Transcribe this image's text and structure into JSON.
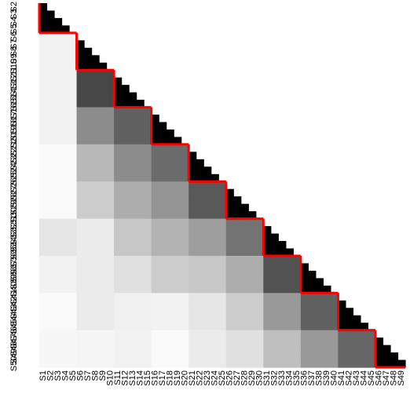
{
  "chart_data": {
    "type": "heatmap",
    "title": "",
    "xlabel": "",
    "ylabel": "",
    "x_labels": [
      "S1",
      "S2",
      "S3",
      "S4",
      "S5",
      "S6",
      "S7",
      "S8",
      "S9",
      "S10",
      "S11",
      "S12",
      "S13",
      "S14",
      "S15",
      "S16",
      "S17",
      "S18",
      "S19",
      "S20",
      "S21",
      "S22",
      "S23",
      "S24",
      "S25",
      "S26",
      "S27",
      "S28",
      "S29",
      "S30",
      "S31",
      "S32",
      "S33",
      "S34",
      "S35",
      "S36",
      "S37",
      "S38",
      "S39",
      "S40",
      "S41",
      "S42",
      "S43",
      "S44",
      "S45",
      "S46",
      "S47",
      "S48",
      "S49"
    ],
    "y_labels": [
      "S2",
      "S3",
      "S4",
      "S5",
      "S6",
      "S7",
      "S8",
      "S9",
      "S10",
      "S11",
      "S12",
      "S13",
      "S14",
      "S15",
      "S16",
      "S17",
      "S18",
      "S19",
      "S20",
      "S21",
      "S22",
      "S23",
      "S24",
      "S25",
      "S26",
      "S27",
      "S28",
      "S29",
      "S30",
      "S31",
      "S32",
      "S33",
      "S34",
      "S35",
      "S36",
      "S37",
      "S38",
      "S39",
      "S40",
      "S41",
      "S42",
      "S43",
      "S44",
      "S45",
      "S46",
      "S47",
      "S48",
      "S49",
      "S50"
    ],
    "lower_triangle": true,
    "value_range": [
      0,
      1
    ],
    "color_scale": {
      "low": "#ffffff",
      "high": "#000000"
    },
    "within_block_value": 1.0,
    "block_size": 5,
    "block_levels": [
      [
        1.0
      ],
      [
        0.05,
        1.0
      ],
      [
        0.05,
        0.72,
        1.0
      ],
      [
        0.05,
        0.45,
        0.62,
        1.0
      ],
      [
        0.02,
        0.28,
        0.45,
        0.58,
        1.0
      ],
      [
        0.02,
        0.2,
        0.32,
        0.42,
        0.65,
        1.0
      ],
      [
        0.1,
        0.08,
        0.22,
        0.3,
        0.38,
        0.55,
        1.0
      ],
      [
        0.05,
        0.08,
        0.12,
        0.2,
        0.22,
        0.32,
        0.68,
        1.0
      ],
      [
        0.02,
        0.08,
        0.06,
        0.05,
        0.1,
        0.2,
        0.4,
        0.62,
        1.0
      ],
      [
        0.03,
        0.04,
        0.05,
        0.02,
        0.08,
        0.12,
        0.25,
        0.4,
        0.6,
        1.0
      ]
    ],
    "block_boundary_color": "#ff0000",
    "grid": false,
    "legend": "none"
  }
}
